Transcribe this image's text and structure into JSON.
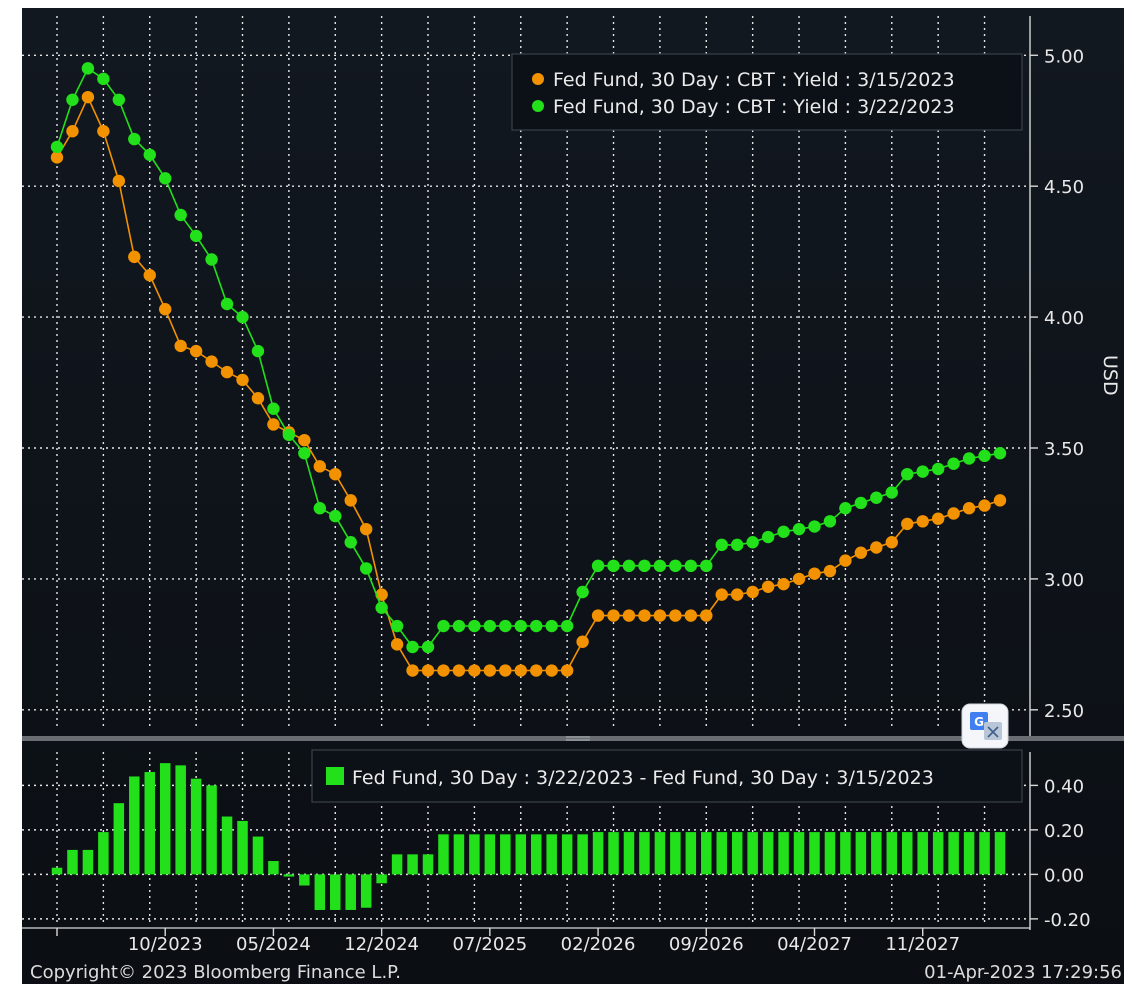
{
  "chart_data": [
    {
      "type": "line",
      "ylabel": "USD",
      "ylim": [
        2.4,
        5.15
      ],
      "yticks": [
        "5.00",
        "4.50",
        "4.00",
        "3.50",
        "3.00",
        "2.50"
      ],
      "ytick_values": [
        5.0,
        4.5,
        4.0,
        3.5,
        3.0,
        2.5
      ],
      "x_tick_labels": [
        "10/2023",
        "05/2024",
        "12/2024",
        "07/2025",
        "02/2026",
        "09/2026",
        "04/2027",
        "11/2027"
      ],
      "x_tick_index": [
        7,
        14,
        21,
        28,
        35,
        42,
        49,
        56
      ],
      "series": [
        {
          "name": "Fed Fund, 30 Day : CBT : Yield : 3/15/2023",
          "color": "#f39200",
          "values": [
            4.61,
            4.71,
            4.84,
            4.71,
            4.52,
            4.23,
            4.16,
            4.03,
            3.89,
            3.87,
            3.83,
            3.79,
            3.76,
            3.69,
            3.59,
            3.56,
            3.53,
            3.43,
            3.4,
            3.3,
            3.19,
            2.94,
            2.75,
            2.65,
            2.65,
            2.65,
            2.65,
            2.65,
            2.65,
            2.65,
            2.65,
            2.65,
            2.65,
            2.65,
            2.76,
            2.86,
            2.86,
            2.86,
            2.86,
            2.86,
            2.86,
            2.86,
            2.86,
            2.94,
            2.94,
            2.95,
            2.97,
            2.98,
            3.0,
            3.02,
            3.03,
            3.07,
            3.1,
            3.12,
            3.14,
            3.21,
            3.22,
            3.23,
            3.25,
            3.27,
            3.28,
            3.3
          ]
        },
        {
          "name": "Fed Fund, 30 Day : CBT : Yield : 3/22/2023",
          "color": "#22e01a",
          "values": [
            4.65,
            4.83,
            4.95,
            4.91,
            4.83,
            4.68,
            4.62,
            4.53,
            4.39,
            4.31,
            4.22,
            4.05,
            4.0,
            3.87,
            3.65,
            3.55,
            3.48,
            3.27,
            3.24,
            3.14,
            3.04,
            2.89,
            2.82,
            2.74,
            2.74,
            2.82,
            2.82,
            2.82,
            2.82,
            2.82,
            2.82,
            2.82,
            2.82,
            2.82,
            2.95,
            3.05,
            3.05,
            3.05,
            3.05,
            3.05,
            3.05,
            3.05,
            3.05,
            3.13,
            3.13,
            3.14,
            3.16,
            3.18,
            3.19,
            3.2,
            3.22,
            3.27,
            3.29,
            3.31,
            3.33,
            3.4,
            3.41,
            3.42,
            3.44,
            3.46,
            3.47,
            3.48
          ]
        }
      ]
    },
    {
      "type": "bar",
      "ylim": [
        -0.25,
        0.55
      ],
      "yticks": [
        "0.40",
        "0.20",
        "0.00",
        "-0.20"
      ],
      "ytick_values": [
        0.4,
        0.2,
        0.0,
        -0.2
      ],
      "series": [
        {
          "name": "Fed Fund, 30 Day : 3/22/2023 - Fed Fund, 30 Day : 3/15/2023",
          "color": "#22e01a",
          "values": [
            0.03,
            0.11,
            0.11,
            0.19,
            0.32,
            0.44,
            0.46,
            0.5,
            0.49,
            0.43,
            0.4,
            0.26,
            0.24,
            0.17,
            0.06,
            -0.01,
            -0.05,
            -0.16,
            -0.16,
            -0.16,
            -0.15,
            -0.04,
            0.09,
            0.09,
            0.09,
            0.18,
            0.18,
            0.18,
            0.18,
            0.18,
            0.18,
            0.18,
            0.18,
            0.18,
            0.18,
            0.19,
            0.19,
            0.19,
            0.19,
            0.19,
            0.19,
            0.19,
            0.19,
            0.19,
            0.19,
            0.19,
            0.19,
            0.19,
            0.19,
            0.19,
            0.19,
            0.19,
            0.19,
            0.19,
            0.19,
            0.19,
            0.19,
            0.19,
            0.19,
            0.19,
            0.19,
            0.19
          ]
        }
      ]
    }
  ],
  "footer": {
    "copyright": "Copyright© 2023 Bloomberg Finance L.P.",
    "timestamp": "01-Apr-2023  17:29:56"
  }
}
